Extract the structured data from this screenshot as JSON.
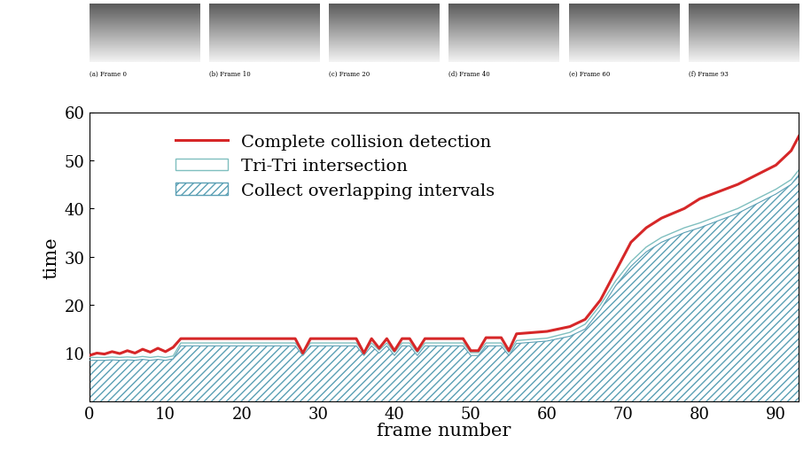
{
  "chart_data": {
    "type": "line",
    "x_label": "frame number",
    "y_label": "time",
    "x": [
      0,
      1,
      2,
      3,
      4,
      5,
      6,
      7,
      8,
      9,
      10,
      11,
      12,
      13,
      20,
      27,
      28,
      29,
      35,
      36,
      37,
      38,
      39,
      40,
      41,
      42,
      43,
      44,
      45,
      49,
      50,
      51,
      52,
      54,
      55,
      56,
      60,
      63,
      65,
      67,
      69,
      71,
      73,
      75,
      78,
      80,
      85,
      90,
      92,
      93
    ],
    "series": [
      {
        "name": "Complete collision detection",
        "type": "line",
        "color": "#d62728",
        "line_style": "solid",
        "values": [
          9.5,
          10,
          9.8,
          10.3,
          9.9,
          10.5,
          10,
          10.8,
          10.2,
          11,
          10.3,
          11.2,
          13,
          13,
          13,
          13,
          10,
          13,
          13,
          10,
          13,
          11,
          13,
          10.5,
          13,
          13,
          10.5,
          13,
          13,
          13,
          10.5,
          10.5,
          13.2,
          13.2,
          10.5,
          14,
          14.5,
          15.5,
          17,
          21,
          27,
          33,
          36,
          38,
          40,
          42,
          45,
          49,
          52,
          55
        ]
      },
      {
        "name": "Collect overlapping intervals",
        "type": "area",
        "color": "#5a9fb4",
        "values": [
          8.5,
          8.5,
          8.5,
          8.6,
          8.5,
          8.6,
          8.5,
          8.7,
          8.5,
          8.7,
          8.5,
          8.8,
          11.5,
          11.5,
          11.5,
          11.5,
          9.5,
          11.5,
          11.5,
          9.5,
          11.5,
          10,
          11.5,
          9.5,
          11.5,
          11.5,
          9.5,
          11.5,
          11.5,
          11.5,
          9.5,
          9.5,
          11.5,
          11.5,
          9.5,
          12,
          12.5,
          13.5,
          15,
          19,
          24,
          28,
          31,
          33,
          35,
          36,
          39,
          43,
          45,
          47
        ]
      },
      {
        "name": "Tri-Tri intersection",
        "type": "area",
        "color": "#7fbfbf",
        "values": [
          0.6,
          0.6,
          0.6,
          0.6,
          0.6,
          0.6,
          0.6,
          0.6,
          0.6,
          0.6,
          0.6,
          0.6,
          0.6,
          0.6,
          0.6,
          0.6,
          0.6,
          0.6,
          0.6,
          0.6,
          0.6,
          0.6,
          0.6,
          0.6,
          0.6,
          0.6,
          0.6,
          0.6,
          0.6,
          0.6,
          0.6,
          0.6,
          0.6,
          0.6,
          0.6,
          0.6,
          0.6,
          0.8,
          1,
          1,
          1,
          1,
          1,
          1,
          1,
          1,
          1,
          1,
          1,
          1
        ]
      }
    ],
    "legend_order": [
      "Complete collision detection",
      "Tri-Tri intersection",
      "Collect overlapping intervals"
    ],
    "stacked": true,
    "legend": "upper left",
    "grid": false,
    "xlim": [
      0,
      93
    ],
    "xticks": [
      0,
      10,
      20,
      30,
      40,
      50,
      60,
      70,
      80,
      90
    ],
    "ylim": [
      0,
      60
    ],
    "yticks": [
      10,
      20,
      30,
      40,
      50,
      60
    ]
  },
  "panels": {
    "captions": [
      "(a) Frame 0",
      "(b) Frame 10",
      "(c) Frame 20",
      "(d) Frame 40",
      "(e) Frame 60",
      "(f) Frame 93"
    ]
  }
}
